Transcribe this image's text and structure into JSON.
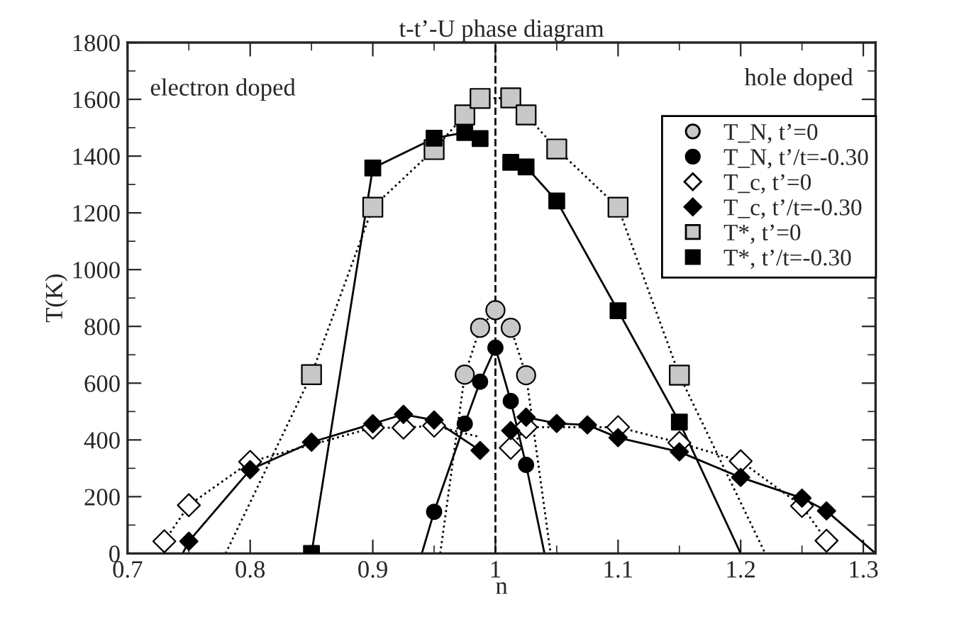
{
  "chart_data": {
    "type": "scatter",
    "title": "t-t’-U phase diagram",
    "xlabel": "n",
    "ylabel": "T(K)",
    "xlim": [
      0.7,
      1.31
    ],
    "ylim": [
      0,
      1800
    ],
    "xticks": [
      0.7,
      {
        "value": 0.75,
        "label": null
      },
      0.8,
      {
        "value": 0.85,
        "label": null
      },
      0.9,
      {
        "value": 0.95,
        "label": null
      },
      1,
      {
        "value": 1.05,
        "label": null
      },
      1.1,
      {
        "value": 1.15,
        "label": null
      },
      1.2,
      {
        "value": 1.25,
        "label": null
      },
      1.3
    ],
    "yticks": [
      0,
      {
        "value": 100,
        "label": null
      },
      200,
      {
        "value": 300,
        "label": null
      },
      400,
      {
        "value": 500,
        "label": null
      },
      600,
      {
        "value": 700,
        "label": null
      },
      800,
      {
        "value": 900,
        "label": null
      },
      1000,
      {
        "value": 1100,
        "label": null
      },
      1200,
      {
        "value": 1300,
        "label": null
      },
      1400,
      {
        "value": 1500,
        "label": null
      },
      1600,
      {
        "value": 1700,
        "label": null
      },
      1800
    ],
    "grid": false,
    "legend": "top right",
    "annotations": [
      "electron doped",
      "hole doped"
    ],
    "ref_lines": [
      {
        "axis": "x",
        "value": 1,
        "label": null,
        "color": "#000000",
        "line_style": "dashed"
      }
    ],
    "series": [
      {
        "name": "T_N, t’=0",
        "marker": "circle",
        "color": "#c8c8c8",
        "x": [
          0.975,
          0.9875,
          1.0,
          1.0125,
          1.025
        ],
        "values": [
          630,
          795,
          857,
          795,
          628
        ]
      },
      {
        "name": "T_N, t’/t=-0.30",
        "marker": "circle",
        "color": "#000000",
        "x": [
          0.95,
          0.975,
          0.9875,
          1.0,
          1.0125,
          1.025
        ],
        "values": [
          147,
          457,
          605,
          725,
          537,
          312
        ]
      },
      {
        "name": "T_c, t’=0",
        "marker": "diamond",
        "color": "#ffffff",
        "x": [
          0.73,
          0.75,
          0.8,
          0.9,
          0.925,
          0.95,
          1.0125,
          1.025,
          1.1,
          1.15,
          1.2,
          1.25,
          1.27
        ],
        "values": [
          43,
          170,
          323,
          443,
          443,
          450,
          372,
          445,
          445,
          390,
          325,
          167,
          45
        ]
      },
      {
        "name": "T_c, t’/t=-0.30",
        "marker": "diamond",
        "color": "#000000",
        "x": [
          0.75,
          0.8,
          0.85,
          0.9,
          0.925,
          0.95,
          0.9875,
          1.0125,
          1.025,
          1.05,
          1.075,
          1.1,
          1.15,
          1.2,
          1.25,
          1.27
        ],
        "values": [
          43,
          295,
          392,
          457,
          490,
          470,
          363,
          433,
          480,
          458,
          453,
          408,
          358,
          268,
          195,
          150
        ]
      },
      {
        "name": "T*, t’=0",
        "marker": "square",
        "color": "#c8c8c8",
        "x": [
          0.85,
          0.9,
          0.95,
          0.975,
          0.9875,
          1.0125,
          1.025,
          1.05,
          1.1,
          1.15
        ],
        "values": [
          630,
          1220,
          1423,
          1545,
          1603,
          1605,
          1545,
          1425,
          1220,
          628
        ]
      },
      {
        "name": "T*, t’/t=-0.30",
        "marker": "square",
        "color": "#000000",
        "x": [
          0.85,
          0.9,
          0.95,
          0.975,
          0.9875,
          1.0125,
          1.025,
          1.05,
          1.1,
          1.15
        ],
        "values": [
          0,
          1358,
          1463,
          1483,
          1462,
          1378,
          1362,
          1242,
          855,
          463
        ]
      },
      {
        "type": "line",
        "marker": "none",
        "line_style": "dotted",
        "color": "#000000",
        "x": [
          0.955,
          0.975,
          0.9875,
          1.0,
          1.0125,
          1.025,
          1.045
        ],
        "values": [
          0,
          630,
          795,
          857,
          795,
          628,
          0
        ]
      },
      {
        "type": "line",
        "marker": "none",
        "line_style": "solid",
        "color": "#000000",
        "x": [
          0.94,
          0.95,
          0.975,
          0.9875,
          1.0,
          1.0125,
          1.025,
          1.04
        ],
        "values": [
          0,
          147,
          457,
          605,
          725,
          537,
          312,
          0
        ]
      },
      {
        "type": "line",
        "marker": "none",
        "line_style": "dotted",
        "color": "#000000",
        "x": [
          0.73,
          0.75,
          0.8,
          0.9,
          0.925,
          0.95,
          0.9875
        ],
        "values": [
          43,
          170,
          323,
          443,
          443,
          450,
          410
        ]
      },
      {
        "type": "line",
        "marker": "none",
        "line_style": "dotted",
        "color": "#000000",
        "x": [
          1.0125,
          1.025,
          1.1,
          1.15,
          1.2,
          1.25,
          1.27
        ],
        "values": [
          372,
          445,
          445,
          390,
          325,
          167,
          45
        ]
      },
      {
        "type": "line",
        "marker": "none",
        "line_style": "solid",
        "color": "#000000",
        "x": [
          0.745,
          0.75,
          0.8,
          0.85,
          0.9,
          0.925,
          0.95,
          0.9875
        ],
        "values": [
          0,
          43,
          295,
          392,
          457,
          490,
          470,
          363
        ]
      },
      {
        "type": "line",
        "marker": "none",
        "line_style": "solid",
        "color": "#000000",
        "x": [
          1.0125,
          1.025,
          1.05,
          1.075,
          1.1,
          1.15,
          1.2,
          1.25,
          1.27,
          1.31
        ],
        "values": [
          433,
          480,
          458,
          453,
          408,
          358,
          268,
          195,
          150,
          0
        ]
      },
      {
        "type": "line",
        "marker": "none",
        "line_style": "dotted",
        "color": "#000000",
        "x": [
          0.78,
          0.85,
          0.9,
          0.95,
          0.975,
          0.9875,
          1.0125,
          1.025,
          1.05,
          1.1,
          1.15,
          1.22
        ],
        "values": [
          0,
          630,
          1220,
          1423,
          1545,
          1603,
          1605,
          1545,
          1425,
          1220,
          628,
          0
        ]
      },
      {
        "type": "line",
        "marker": "none",
        "line_style": "solid",
        "color": "#000000",
        "x": [
          0.85,
          0.9,
          0.95,
          0.975,
          0.9875
        ],
        "values": [
          0,
          1358,
          1463,
          1483,
          1462
        ]
      },
      {
        "type": "line",
        "marker": "none",
        "line_style": "solid",
        "color": "#000000",
        "x": [
          1.0125,
          1.025,
          1.05,
          1.1,
          1.15,
          1.2
        ],
        "values": [
          1378,
          1362,
          1242,
          855,
          463,
          0
        ]
      }
    ]
  }
}
